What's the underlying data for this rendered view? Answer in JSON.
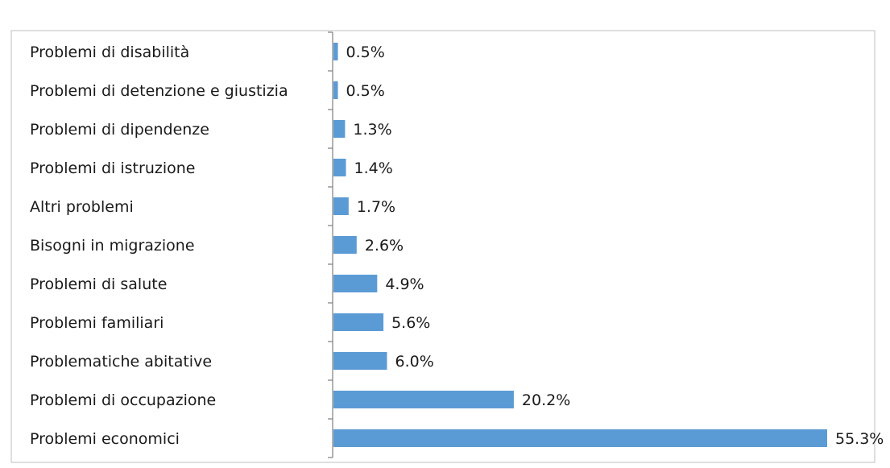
{
  "chart_data": {
    "type": "bar",
    "orientation": "horizontal",
    "categories": [
      "Problemi di disabilità",
      "Problemi di detenzione e giustizia",
      "Problemi di dipendenze",
      "Problemi di istruzione",
      "Altri problemi",
      "Bisogni in migrazione",
      "Problemi di salute",
      "Problemi familiari",
      "Problematiche abitative",
      "Problemi di occupazione",
      "Problemi economici"
    ],
    "values": [
      0.5,
      0.5,
      1.3,
      1.4,
      1.7,
      2.6,
      4.9,
      5.6,
      6.0,
      20.2,
      55.3
    ],
    "value_labels": [
      "0.5%",
      "0.5%",
      "1.3%",
      "1.4%",
      "1.7%",
      "2.6%",
      "4.9%",
      "5.6%",
      "6.0%",
      "20.2%",
      "55.3%"
    ],
    "title": "",
    "xlabel": "",
    "ylabel": "",
    "xlim": [
      0,
      55.3
    ],
    "grid": false,
    "legend": "none",
    "bar_color": "#5b9bd5",
    "axis_color": "#7f7f7f",
    "frame_color": "#bfbfbf"
  }
}
